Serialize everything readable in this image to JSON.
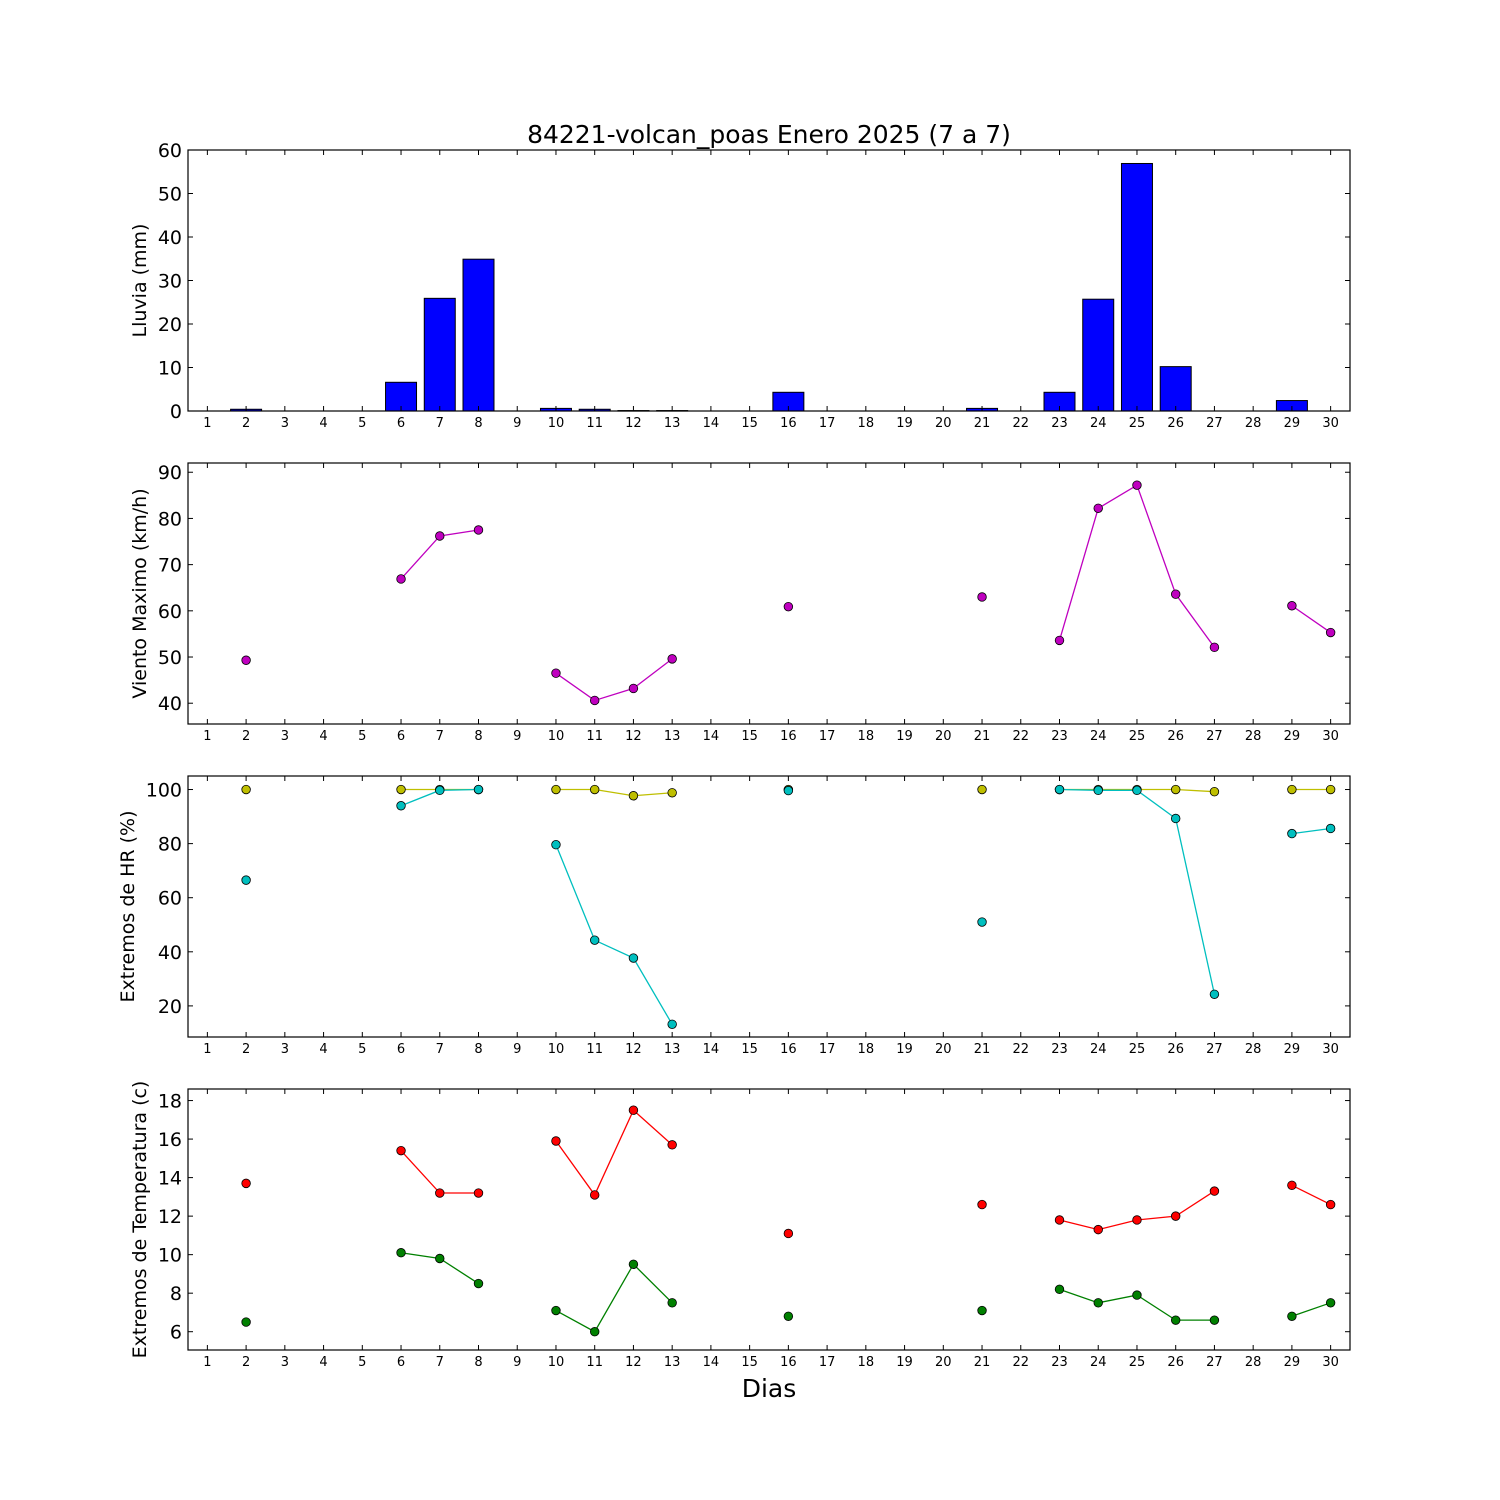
{
  "title": "84221-volcan_poas Enero 2025  (7 a 7)",
  "xlabel": "Dias",
  "chart_data": [
    {
      "type": "bar",
      "ylabel": "Lluvia (mm)",
      "ylim": [
        0,
        60
      ],
      "yticks": [
        0,
        10,
        20,
        30,
        40,
        50,
        60
      ],
      "xlim": [
        0.5,
        30.5
      ],
      "xticks": [
        1,
        2,
        3,
        4,
        5,
        6,
        7,
        8,
        9,
        10,
        11,
        12,
        13,
        14,
        15,
        16,
        17,
        18,
        19,
        20,
        21,
        22,
        23,
        24,
        25,
        26,
        27,
        28,
        29,
        30
      ],
      "grid": false,
      "series": [
        {
          "color": "#0000ff",
          "points": [
            {
              "x": 2,
              "y": 0.4
            },
            {
              "x": 6,
              "y": 6.6
            },
            {
              "x": 7,
              "y": 25.9
            },
            {
              "x": 8,
              "y": 34.9
            },
            {
              "x": 10,
              "y": 0.6
            },
            {
              "x": 11,
              "y": 0.4
            },
            {
              "x": 12,
              "y": 0.1
            },
            {
              "x": 13,
              "y": 0.1
            },
            {
              "x": 16,
              "y": 4.3
            },
            {
              "x": 21,
              "y": 0.6
            },
            {
              "x": 23,
              "y": 4.3
            },
            {
              "x": 24,
              "y": 25.7
            },
            {
              "x": 25,
              "y": 56.9
            },
            {
              "x": 26,
              "y": 10.2
            },
            {
              "x": 29,
              "y": 2.4
            }
          ]
        }
      ]
    },
    {
      "type": "line",
      "ylabel": "Viento Maximo (km/h)",
      "ylim": [
        35.5,
        92
      ],
      "yticks": [
        40,
        50,
        60,
        70,
        80,
        90
      ],
      "xlim": [
        0.5,
        30.5
      ],
      "xticks": [
        1,
        2,
        3,
        4,
        5,
        6,
        7,
        8,
        9,
        10,
        11,
        12,
        13,
        14,
        15,
        16,
        17,
        18,
        19,
        20,
        21,
        22,
        23,
        24,
        25,
        26,
        27,
        28,
        29,
        30
      ],
      "grid": false,
      "series": [
        {
          "color": "#bf00bf",
          "points": [
            {
              "x": 2,
              "y": 49.3
            },
            {
              "x": 6,
              "y": 66.9
            },
            {
              "x": 7,
              "y": 76.2
            },
            {
              "x": 8,
              "y": 77.5
            },
            {
              "x": 10,
              "y": 46.5
            },
            {
              "x": 11,
              "y": 40.6
            },
            {
              "x": 12,
              "y": 43.2
            },
            {
              "x": 13,
              "y": 49.6
            },
            {
              "x": 16,
              "y": 60.9
            },
            {
              "x": 21,
              "y": 63.0
            },
            {
              "x": 23,
              "y": 53.6
            },
            {
              "x": 24,
              "y": 82.2
            },
            {
              "x": 25,
              "y": 87.2
            },
            {
              "x": 26,
              "y": 63.6
            },
            {
              "x": 27,
              "y": 52.1
            },
            {
              "x": 29,
              "y": 61.1
            },
            {
              "x": 30,
              "y": 55.3
            }
          ]
        }
      ]
    },
    {
      "type": "line",
      "ylabel": "Extremos de HR (%)",
      "ylim": [
        8.5,
        105
      ],
      "yticks": [
        20,
        40,
        60,
        80,
        100
      ],
      "xlim": [
        0.5,
        30.5
      ],
      "xticks": [
        1,
        2,
        3,
        4,
        5,
        6,
        7,
        8,
        9,
        10,
        11,
        12,
        13,
        14,
        15,
        16,
        17,
        18,
        19,
        20,
        21,
        22,
        23,
        24,
        25,
        26,
        27,
        28,
        29,
        30
      ],
      "grid": false,
      "series": [
        {
          "color": "#bfbf00",
          "points": [
            {
              "x": 2,
              "y": 100
            },
            {
              "x": 6,
              "y": 100
            },
            {
              "x": 7,
              "y": 100
            },
            {
              "x": 8,
              "y": 100
            },
            {
              "x": 10,
              "y": 100
            },
            {
              "x": 11,
              "y": 100
            },
            {
              "x": 12,
              "y": 97.7
            },
            {
              "x": 13,
              "y": 98.8
            },
            {
              "x": 16,
              "y": 100
            },
            {
              "x": 21,
              "y": 100
            },
            {
              "x": 23,
              "y": 100
            },
            {
              "x": 24,
              "y": 100
            },
            {
              "x": 25,
              "y": 100
            },
            {
              "x": 26,
              "y": 100
            },
            {
              "x": 27,
              "y": 99.2
            },
            {
              "x": 29,
              "y": 100
            },
            {
              "x": 30,
              "y": 100
            }
          ]
        },
        {
          "color": "#00bfbf",
          "points": [
            {
              "x": 2,
              "y": 66.5
            },
            {
              "x": 6,
              "y": 94.0
            },
            {
              "x": 7,
              "y": 99.7
            },
            {
              "x": 8,
              "y": 100
            },
            {
              "x": 10,
              "y": 79.6
            },
            {
              "x": 11,
              "y": 44.3
            },
            {
              "x": 12,
              "y": 37.7
            },
            {
              "x": 13,
              "y": 13.2
            },
            {
              "x": 16,
              "y": 99.6
            },
            {
              "x": 21,
              "y": 51.0
            },
            {
              "x": 23,
              "y": 100
            },
            {
              "x": 24,
              "y": 99.7
            },
            {
              "x": 25,
              "y": 99.7
            },
            {
              "x": 26,
              "y": 89.3
            },
            {
              "x": 27,
              "y": 24.3
            },
            {
              "x": 29,
              "y": 83.7
            },
            {
              "x": 30,
              "y": 85.6
            }
          ]
        }
      ]
    },
    {
      "type": "line",
      "ylabel": "Extremos de Temperatura (c)",
      "ylim": [
        5.05,
        18.6
      ],
      "yticks": [
        6,
        8,
        10,
        12,
        14,
        16,
        18
      ],
      "xlim": [
        0.5,
        30.5
      ],
      "xticks": [
        1,
        2,
        3,
        4,
        5,
        6,
        7,
        8,
        9,
        10,
        11,
        12,
        13,
        14,
        15,
        16,
        17,
        18,
        19,
        20,
        21,
        22,
        23,
        24,
        25,
        26,
        27,
        28,
        29,
        30
      ],
      "grid": false,
      "series": [
        {
          "color": "#ff0000",
          "points": [
            {
              "x": 2,
              "y": 13.7
            },
            {
              "x": 6,
              "y": 15.4
            },
            {
              "x": 7,
              "y": 13.2
            },
            {
              "x": 8,
              "y": 13.2
            },
            {
              "x": 10,
              "y": 15.9
            },
            {
              "x": 11,
              "y": 13.1
            },
            {
              "x": 12,
              "y": 17.5
            },
            {
              "x": 13,
              "y": 15.7
            },
            {
              "x": 16,
              "y": 11.1
            },
            {
              "x": 21,
              "y": 12.6
            },
            {
              "x": 23,
              "y": 11.8
            },
            {
              "x": 24,
              "y": 11.3
            },
            {
              "x": 25,
              "y": 11.8
            },
            {
              "x": 26,
              "y": 12.0
            },
            {
              "x": 27,
              "y": 13.3
            },
            {
              "x": 29,
              "y": 13.6
            },
            {
              "x": 30,
              "y": 12.6
            }
          ]
        },
        {
          "color": "#008000",
          "points": [
            {
              "x": 2,
              "y": 6.5
            },
            {
              "x": 6,
              "y": 10.1
            },
            {
              "x": 7,
              "y": 9.8
            },
            {
              "x": 8,
              "y": 8.5
            },
            {
              "x": 10,
              "y": 7.1
            },
            {
              "x": 11,
              "y": 6.0
            },
            {
              "x": 12,
              "y": 9.5
            },
            {
              "x": 13,
              "y": 7.5
            },
            {
              "x": 16,
              "y": 6.8
            },
            {
              "x": 21,
              "y": 7.1
            },
            {
              "x": 23,
              "y": 8.2
            },
            {
              "x": 24,
              "y": 7.5
            },
            {
              "x": 25,
              "y": 7.9
            },
            {
              "x": 26,
              "y": 6.6
            },
            {
              "x": 27,
              "y": 6.6
            },
            {
              "x": 29,
              "y": 6.8
            },
            {
              "x": 30,
              "y": 7.5
            }
          ]
        }
      ]
    }
  ]
}
